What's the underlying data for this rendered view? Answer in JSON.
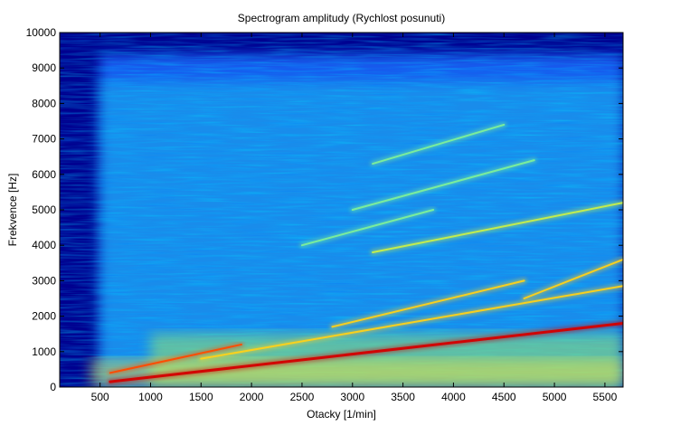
{
  "chart_data": {
    "type": "heatmap",
    "title": "Spectrogram amplitudy (Rychlost posunuti)",
    "xlabel": "Otacky [1/min]",
    "ylabel": "Frekvence [Hz]",
    "xlim": [
      100,
      5680
    ],
    "ylim": [
      0,
      10000
    ],
    "x_ticks": [
      500,
      1000,
      1500,
      2000,
      2500,
      3000,
      3500,
      4000,
      4500,
      5000,
      5500
    ],
    "y_ticks": [
      0,
      1000,
      2000,
      3000,
      4000,
      5000,
      6000,
      7000,
      8000,
      9000,
      10000
    ],
    "colormap": "jet",
    "background_color": "#00008f",
    "grid": false,
    "ridges": [
      {
        "from": [
          600,
          150
        ],
        "to": [
          5680,
          1800
        ],
        "intensity": 1.0
      },
      {
        "from": [
          600,
          400
        ],
        "to": [
          1900,
          1200
        ],
        "intensity": 0.85
      },
      {
        "from": [
          1500,
          800
        ],
        "to": [
          5680,
          2850
        ],
        "intensity": 0.6
      },
      {
        "from": [
          2800,
          1700
        ],
        "to": [
          4700,
          3000
        ],
        "intensity": 0.65
      },
      {
        "from": [
          4700,
          2500
        ],
        "to": [
          5680,
          3600
        ],
        "intensity": 0.6
      },
      {
        "from": [
          3200,
          3800
        ],
        "to": [
          5680,
          5200
        ],
        "intensity": 0.55
      },
      {
        "from": [
          2500,
          4000
        ],
        "to": [
          3800,
          5000
        ],
        "intensity": 0.45
      },
      {
        "from": [
          3000,
          5000
        ],
        "to": [
          4800,
          6400
        ],
        "intensity": 0.4
      },
      {
        "from": [
          3200,
          6300
        ],
        "to": [
          4500,
          7400
        ],
        "intensity": 0.35
      }
    ],
    "hot_zones": [
      {
        "x": [
          1000,
          5680
        ],
        "y": [
          0,
          1500
        ],
        "intensity": 0.55
      },
      {
        "x": [
          400,
          5680
        ],
        "y": [
          0,
          800
        ],
        "intensity": 0.5
      }
    ]
  }
}
